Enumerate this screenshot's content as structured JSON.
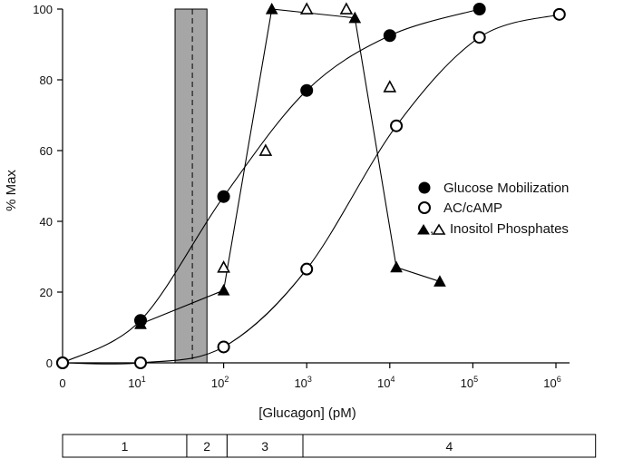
{
  "chart_data": {
    "type": "scatter",
    "xscale": "log",
    "xlabel": "[Glucagon] (pM)",
    "ylabel": "% Max",
    "ylim": [
      0,
      100
    ],
    "yticks": [
      0,
      20,
      40,
      60,
      80,
      100
    ],
    "xticks": [
      {
        "value": 0,
        "base": "0",
        "exp": ""
      },
      {
        "value": 10,
        "base": "10",
        "exp": "1"
      },
      {
        "value": 100,
        "base": "10",
        "exp": "2"
      },
      {
        "value": 1000,
        "base": "10",
        "exp": "3"
      },
      {
        "value": 10000,
        "base": "10",
        "exp": "4"
      },
      {
        "value": 100000,
        "base": "10",
        "exp": "5"
      },
      {
        "value": 1000000,
        "base": "10",
        "exp": "6"
      }
    ],
    "legend_position": "right",
    "grid": false,
    "shaded_band": {
      "from": 26,
      "to": 63,
      "dashed_at": 42,
      "color": "#a6a6a6"
    },
    "series": [
      {
        "name": "Glucose Mobilization",
        "marker": "filled-circle",
        "fit": "sigmoid",
        "points": [
          [
            0,
            0
          ],
          [
            10,
            12
          ],
          [
            100,
            47
          ],
          [
            1000,
            77
          ],
          [
            10000,
            92.5
          ],
          [
            120000,
            100
          ]
        ]
      },
      {
        "name": "AC/cAMP",
        "marker": "open-circle",
        "fit": "sigmoid",
        "points": [
          [
            0,
            0
          ],
          [
            10,
            0
          ],
          [
            100,
            4.5
          ],
          [
            1000,
            26.5
          ],
          [
            12000,
            67
          ],
          [
            120000,
            92
          ],
          [
            1100000,
            98.5
          ]
        ]
      },
      {
        "name": "Inositol Phosphates",
        "legend_label": "Inositol Phosphates",
        "series_parts": [
          {
            "marker": "filled-triangle",
            "connected": true,
            "points": [
              [
                10,
                11
              ],
              [
                100,
                20.5
              ],
              [
                380,
                100
              ],
              [
                3800,
                97.5
              ],
              [
                12000,
                27
              ],
              [
                40000,
                23
              ]
            ]
          },
          {
            "marker": "open-triangle",
            "connected": false,
            "points": [
              [
                100,
                27
              ],
              [
                320,
                60
              ],
              [
                1000,
                100
              ],
              [
                3000,
                100
              ],
              [
                10000,
                78
              ]
            ]
          }
        ]
      }
    ],
    "phases": [
      {
        "label": "1",
        "from": 0,
        "to": 36
      },
      {
        "label": "2",
        "from": 36,
        "to": 110
      },
      {
        "label": "3",
        "from": 110,
        "to": 900
      },
      {
        "label": "4",
        "from": 900,
        "to": 3000000
      }
    ]
  }
}
